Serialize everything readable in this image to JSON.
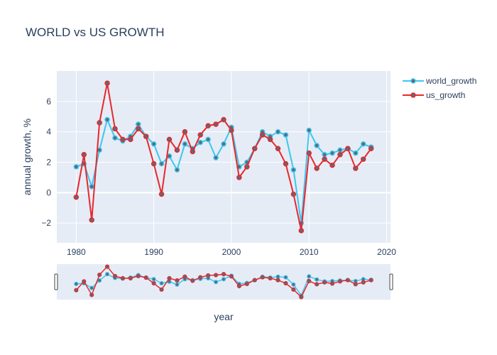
{
  "chart_data": {
    "type": "line",
    "title": "WORLD vs US GROWTH",
    "xlabel": "year",
    "ylabel": "annual growth, %",
    "xlim": [
      1977.5,
      2020.5
    ],
    "ylim": [
      -3.3,
      8.0
    ],
    "x_ticks": [
      1980,
      1990,
      2000,
      2010,
      2020
    ],
    "y_ticks": [
      -2,
      0,
      2,
      4,
      6
    ],
    "grid": true,
    "legend_position": "top-right",
    "range_slider": true,
    "x": [
      1980,
      1981,
      1982,
      1983,
      1984,
      1985,
      1986,
      1987,
      1988,
      1989,
      1990,
      1991,
      1992,
      1993,
      1994,
      1995,
      1996,
      1997,
      1998,
      1999,
      2000,
      2001,
      2002,
      2003,
      2004,
      2005,
      2006,
      2007,
      2008,
      2009,
      2010,
      2011,
      2012,
      2013,
      2014,
      2015,
      2016,
      2017,
      2018
    ],
    "series": [
      {
        "name": "world_growth",
        "color": "#3ec6f0",
        "values": [
          1.7,
          1.9,
          0.4,
          2.8,
          4.8,
          3.6,
          3.4,
          3.7,
          4.5,
          3.7,
          3.2,
          1.9,
          2.4,
          1.5,
          3.2,
          2.9,
          3.3,
          3.5,
          2.3,
          3.2,
          4.3,
          1.7,
          2.0,
          2.9,
          4.0,
          3.7,
          4.0,
          3.8,
          1.5,
          -2.0,
          4.1,
          3.1,
          2.5,
          2.6,
          2.8,
          2.9,
          2.6,
          3.2,
          3.0
        ]
      },
      {
        "name": "us_growth",
        "color": "#e8282b",
        "values": [
          -0.3,
          2.5,
          -1.8,
          4.6,
          7.2,
          4.2,
          3.5,
          3.5,
          4.2,
          3.7,
          1.9,
          -0.1,
          3.5,
          2.8,
          4.0,
          2.7,
          3.8,
          4.4,
          4.5,
          4.8,
          4.1,
          1.0,
          1.7,
          2.9,
          3.8,
          3.5,
          2.9,
          1.9,
          -0.1,
          -2.5,
          2.6,
          1.6,
          2.2,
          1.8,
          2.5,
          2.9,
          1.6,
          2.2,
          2.9
        ]
      }
    ]
  }
}
